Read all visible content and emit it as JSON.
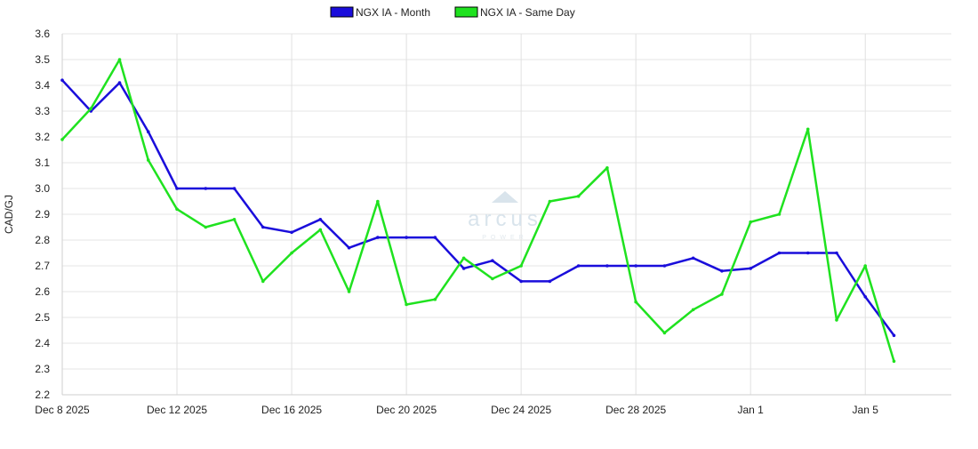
{
  "watermark": {
    "name": "arcus",
    "subtitle": "POWER"
  },
  "chart_data": {
    "type": "line",
    "title": "",
    "xlabel": "",
    "ylabel": "CAD/GJ",
    "ylim": [
      2.2,
      3.6
    ],
    "yticks": [
      2.2,
      2.3,
      2.4,
      2.5,
      2.6,
      2.7,
      2.8,
      2.9,
      3.0,
      3.1,
      3.2,
      3.3,
      3.4,
      3.5,
      3.6
    ],
    "ytick_labels": [
      "2.2",
      "2.3",
      "2.4",
      "2.5",
      "2.6",
      "2.7",
      "2.8",
      "2.9",
      "3.0",
      "3.1",
      "3.2",
      "3.3",
      "3.4",
      "3.5",
      "3.6"
    ],
    "xticks": [
      "2025-12-08",
      "2025-12-12",
      "2025-12-16",
      "2025-12-20",
      "2025-12-24",
      "2025-12-28",
      "2026-01-01",
      "2026-01-05"
    ],
    "xtick_labels": [
      "Dec 8 2025",
      "Dec 12 2025",
      "Dec 16 2025",
      "Dec 20 2025",
      "Dec 24 2025",
      "Dec 28 2025",
      "Jan 1",
      "Jan 5"
    ],
    "xlim": [
      "2025-12-08",
      "2026-01-08"
    ],
    "grid": true,
    "legend_position": "top-center",
    "x": [
      "2025-12-08",
      "2025-12-09",
      "2025-12-10",
      "2025-12-11",
      "2025-12-12",
      "2025-12-13",
      "2025-12-14",
      "2025-12-15",
      "2025-12-16",
      "2025-12-17",
      "2025-12-18",
      "2025-12-19",
      "2025-12-20",
      "2025-12-21",
      "2025-12-22",
      "2025-12-23",
      "2025-12-24",
      "2025-12-25",
      "2025-12-26",
      "2025-12-27",
      "2025-12-28",
      "2025-12-29",
      "2025-12-30",
      "2025-12-31",
      "2026-01-01",
      "2026-01-02",
      "2026-01-03",
      "2026-01-04",
      "2026-01-05",
      "2026-01-06"
    ],
    "series": [
      {
        "name": "NGX IA - Month",
        "color": "#1a0ddb",
        "values": [
          3.42,
          3.3,
          3.41,
          3.22,
          3.0,
          3.0,
          3.0,
          2.85,
          2.83,
          2.88,
          2.77,
          2.81,
          2.81,
          2.81,
          2.69,
          2.72,
          2.64,
          2.64,
          2.7,
          2.7,
          2.7,
          2.7,
          2.73,
          2.68,
          2.69,
          2.75,
          2.75,
          2.75,
          2.58,
          2.43
        ]
      },
      {
        "name": "NGX IA - Same Day",
        "color": "#1fe21f",
        "values": [
          3.19,
          3.31,
          3.5,
          3.11,
          2.92,
          2.85,
          2.88,
          2.64,
          2.75,
          2.84,
          2.6,
          2.95,
          2.55,
          2.57,
          2.73,
          2.65,
          2.7,
          2.95,
          2.97,
          3.08,
          2.56,
          2.44,
          2.53,
          2.59,
          2.87,
          2.9,
          3.23,
          2.49,
          2.7,
          2.33
        ]
      }
    ]
  }
}
